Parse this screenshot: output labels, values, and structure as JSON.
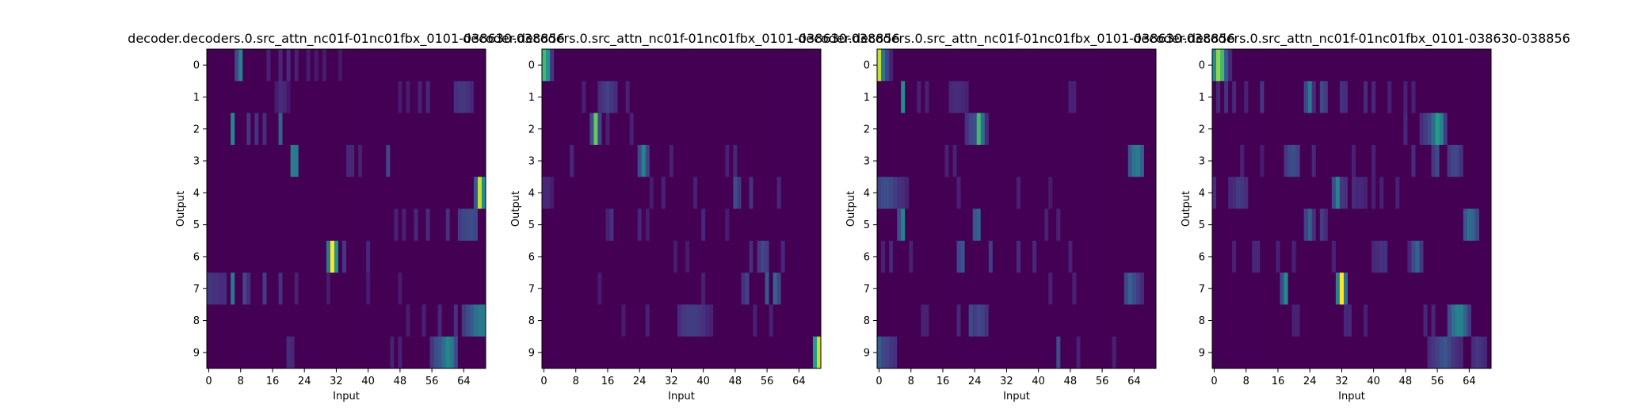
{
  "chart_data": [
    {
      "type": "heatmap",
      "title": "decoder.decoders.0.src_attn_nc01f-01nc01fbx_0101-038630-038856",
      "xlabel": "Input",
      "ylabel": "Output",
      "xlim": [
        0,
        70
      ],
      "ylim": [
        9.5,
        -0.5
      ],
      "x_ticks": [
        0,
        8,
        16,
        24,
        32,
        40,
        48,
        56,
        64
      ],
      "y_ticks": [
        0,
        1,
        2,
        3,
        4,
        5,
        6,
        7,
        8,
        9
      ],
      "grid": false,
      "colormap": "viridis",
      "peaks": [
        {
          "row": 0,
          "x": [
            7,
            8,
            15,
            18,
            20,
            22,
            25,
            27,
            29,
            33
          ],
          "v": [
            0.28,
            0.55,
            0.12,
            0.14,
            0.16,
            0.12,
            0.1,
            0.09,
            0.1,
            0.08
          ]
        },
        {
          "row": 1,
          "x": [
            17,
            18,
            19,
            20,
            48,
            50,
            53,
            55,
            62,
            63,
            64,
            65,
            66
          ],
          "v": [
            0.1,
            0.16,
            0.14,
            0.08,
            0.1,
            0.1,
            0.12,
            0.14,
            0.18,
            0.2,
            0.2,
            0.18,
            0.14
          ]
        },
        {
          "row": 2,
          "x": [
            6,
            10,
            12,
            14,
            18
          ],
          "v": [
            0.58,
            0.2,
            0.18,
            0.16,
            0.38
          ]
        },
        {
          "row": 3,
          "x": [
            21,
            22,
            35,
            36,
            38,
            45
          ],
          "v": [
            0.52,
            0.5,
            0.14,
            0.14,
            0.12,
            0.26
          ]
        },
        {
          "row": 4,
          "x": [
            67,
            68,
            69
          ],
          "v": [
            0.35,
            0.95,
            0.6
          ]
        },
        {
          "row": 5,
          "x": [
            47,
            49,
            52,
            55,
            60,
            63,
            64,
            65,
            66,
            67
          ],
          "v": [
            0.12,
            0.12,
            0.14,
            0.16,
            0.18,
            0.22,
            0.26,
            0.28,
            0.3,
            0.26
          ]
        },
        {
          "row": 6,
          "x": [
            30,
            31,
            32,
            34,
            40
          ],
          "v": [
            0.5,
            1.0,
            0.65,
            0.2,
            0.14
          ]
        },
        {
          "row": 7,
          "x": [
            0,
            1,
            2,
            3,
            4,
            6,
            9,
            10,
            14,
            18,
            22,
            30,
            40,
            48
          ],
          "v": [
            0.2,
            0.18,
            0.18,
            0.16,
            0.16,
            0.5,
            0.26,
            0.16,
            0.22,
            0.18,
            0.12,
            0.1,
            0.1,
            0.1
          ]
        },
        {
          "row": 8,
          "x": [
            50,
            54,
            58,
            62,
            64,
            65,
            66,
            67,
            68,
            69
          ],
          "v": [
            0.1,
            0.12,
            0.14,
            0.18,
            0.22,
            0.3,
            0.36,
            0.45,
            0.5,
            0.5
          ]
        },
        {
          "row": 9,
          "x": [
            20,
            21,
            46,
            48,
            56,
            57,
            58,
            59,
            60,
            61,
            62
          ],
          "v": [
            0.16,
            0.14,
            0.12,
            0.12,
            0.2,
            0.3,
            0.34,
            0.45,
            0.58,
            0.5,
            0.3
          ]
        }
      ]
    },
    {
      "type": "heatmap",
      "title": "decoder.decoders.0.src_attn_nc01f-01nc01fbx_0101-038630-038856",
      "xlabel": "Input",
      "ylabel": "Output",
      "xlim": [
        0,
        70
      ],
      "ylim": [
        9.5,
        -0.5
      ],
      "x_ticks": [
        0,
        8,
        16,
        24,
        32,
        40,
        48,
        56,
        64
      ],
      "y_ticks": [
        0,
        1,
        2,
        3,
        4,
        5,
        6,
        7,
        8,
        9
      ],
      "grid": false,
      "colormap": "viridis",
      "peaks": [
        {
          "row": 0,
          "x": [
            0,
            1,
            2
          ],
          "v": [
            0.8,
            0.65,
            0.2
          ]
        },
        {
          "row": 1,
          "x": [
            10,
            14,
            15,
            16,
            17,
            18,
            21
          ],
          "v": [
            0.12,
            0.16,
            0.2,
            0.24,
            0.2,
            0.16,
            0.12
          ]
        },
        {
          "row": 2,
          "x": [
            12,
            13,
            14,
            16,
            22
          ],
          "v": [
            0.3,
            0.85,
            0.25,
            0.12,
            0.12
          ]
        },
        {
          "row": 3,
          "x": [
            7,
            24,
            25,
            26,
            32,
            46,
            48
          ],
          "v": [
            0.14,
            0.3,
            0.55,
            0.25,
            0.12,
            0.12,
            0.14
          ]
        },
        {
          "row": 4,
          "x": [
            0,
            1,
            2,
            27,
            30,
            38,
            48,
            49,
            52,
            59
          ],
          "v": [
            0.14,
            0.14,
            0.1,
            0.1,
            0.12,
            0.12,
            0.3,
            0.2,
            0.18,
            0.14
          ]
        },
        {
          "row": 5,
          "x": [
            16,
            17,
            24,
            26,
            40,
            46
          ],
          "v": [
            0.12,
            0.18,
            0.14,
            0.1,
            0.14,
            0.1
          ]
        },
        {
          "row": 6,
          "x": [
            33,
            36,
            52,
            54,
            55,
            56,
            60
          ],
          "v": [
            0.1,
            0.1,
            0.16,
            0.2,
            0.26,
            0.22,
            0.14
          ]
        },
        {
          "row": 7,
          "x": [
            14,
            40,
            50,
            51,
            56,
            58,
            59
          ],
          "v": [
            0.1,
            0.12,
            0.18,
            0.24,
            0.34,
            0.4,
            0.24
          ]
        },
        {
          "row": 8,
          "x": [
            20,
            26,
            34,
            35,
            36,
            37,
            38,
            39,
            40,
            41,
            42,
            53,
            57
          ],
          "v": [
            0.1,
            0.12,
            0.16,
            0.2,
            0.22,
            0.22,
            0.22,
            0.2,
            0.18,
            0.14,
            0.12,
            0.12,
            0.12
          ]
        },
        {
          "row": 9,
          "x": [
            68,
            69
          ],
          "v": [
            0.7,
            0.95
          ]
        }
      ]
    },
    {
      "type": "heatmap",
      "title": "decoder.decoders.0.src_attn_nc01f-01nc01fbx_0101-038630-038856",
      "xlabel": "Input",
      "ylabel": "Output",
      "xlim": [
        0,
        70
      ],
      "ylim": [
        9.5,
        -0.5
      ],
      "x_ticks": [
        0,
        8,
        16,
        24,
        32,
        40,
        48,
        56,
        64
      ],
      "y_ticks": [
        0,
        1,
        2,
        3,
        4,
        5,
        6,
        7,
        8,
        9
      ],
      "grid": false,
      "colormap": "viridis",
      "peaks": [
        {
          "row": 0,
          "x": [
            0,
            1,
            2,
            3
          ],
          "v": [
            0.95,
            0.5,
            0.25,
            0.12
          ]
        },
        {
          "row": 1,
          "x": [
            6,
            10,
            12,
            18,
            19,
            20,
            21,
            22,
            48,
            49
          ],
          "v": [
            0.62,
            0.12,
            0.12,
            0.14,
            0.16,
            0.16,
            0.14,
            0.12,
            0.12,
            0.12
          ]
        },
        {
          "row": 2,
          "x": [
            22,
            23,
            24,
            25,
            26,
            27
          ],
          "v": [
            0.18,
            0.26,
            0.3,
            0.8,
            0.45,
            0.16
          ]
        },
        {
          "row": 3,
          "x": [
            17,
            19,
            63,
            64,
            65,
            66
          ],
          "v": [
            0.12,
            0.12,
            0.35,
            0.48,
            0.52,
            0.4
          ]
        },
        {
          "row": 4,
          "x": [
            0,
            1,
            2,
            3,
            4,
            5,
            6,
            7,
            20,
            35,
            43
          ],
          "v": [
            0.24,
            0.3,
            0.3,
            0.26,
            0.22,
            0.18,
            0.16,
            0.12,
            0.12,
            0.12,
            0.1
          ]
        },
        {
          "row": 5,
          "x": [
            5,
            6,
            24,
            25,
            42,
            45
          ],
          "v": [
            0.3,
            0.55,
            0.34,
            0.4,
            0.12,
            0.12
          ]
        },
        {
          "row": 6,
          "x": [
            1,
            3,
            8,
            20,
            21,
            28,
            35,
            39,
            48
          ],
          "v": [
            0.12,
            0.14,
            0.12,
            0.28,
            0.32,
            0.22,
            0.16,
            0.14,
            0.12
          ]
        },
        {
          "row": 7,
          "x": [
            43,
            49,
            62,
            63,
            64,
            65,
            66
          ],
          "v": [
            0.12,
            0.12,
            0.26,
            0.4,
            0.3,
            0.22,
            0.16
          ]
        },
        {
          "row": 8,
          "x": [
            11,
            12,
            20,
            23,
            24,
            25,
            26,
            27
          ],
          "v": [
            0.12,
            0.12,
            0.14,
            0.28,
            0.22,
            0.26,
            0.24,
            0.18
          ]
        },
        {
          "row": 9,
          "x": [
            0,
            1,
            2,
            3,
            4,
            45,
            50,
            59
          ],
          "v": [
            0.36,
            0.26,
            0.24,
            0.2,
            0.18,
            0.3,
            0.12,
            0.12
          ]
        }
      ]
    },
    {
      "type": "heatmap",
      "title": "decoder.decoders.0.src_attn_nc01f-01nc01fbx_0101-038630-038856",
      "xlabel": "Input",
      "ylabel": "Output",
      "xlim": [
        0,
        70
      ],
      "ylim": [
        9.5,
        -0.5
      ],
      "x_ticks": [
        0,
        8,
        16,
        24,
        32,
        40,
        48,
        56,
        64
      ],
      "y_ticks": [
        0,
        1,
        2,
        3,
        4,
        5,
        6,
        7,
        8,
        9
      ],
      "grid": false,
      "colormap": "viridis",
      "peaks": [
        {
          "row": 0,
          "x": [
            0,
            1,
            2,
            3,
            4
          ],
          "v": [
            0.6,
            0.9,
            0.8,
            0.35,
            0.14
          ]
        },
        {
          "row": 1,
          "x": [
            1,
            3,
            5,
            8,
            12,
            23,
            24,
            25,
            27,
            28,
            32,
            33,
            38,
            40,
            44,
            48,
            50
          ],
          "v": [
            0.14,
            0.18,
            0.14,
            0.12,
            0.2,
            0.26,
            0.52,
            0.16,
            0.28,
            0.22,
            0.18,
            0.16,
            0.16,
            0.14,
            0.12,
            0.12,
            0.12
          ]
        },
        {
          "row": 2,
          "x": [
            48,
            52,
            53,
            54,
            55,
            56,
            57,
            58
          ],
          "v": [
            0.14,
            0.16,
            0.22,
            0.3,
            0.45,
            0.7,
            0.55,
            0.22
          ]
        },
        {
          "row": 3,
          "x": [
            7,
            12,
            18,
            19,
            20,
            21,
            25,
            35,
            40,
            50,
            55,
            56,
            59,
            60,
            61,
            62
          ],
          "v": [
            0.12,
            0.1,
            0.2,
            0.28,
            0.3,
            0.24,
            0.14,
            0.12,
            0.12,
            0.16,
            0.2,
            0.28,
            0.22,
            0.26,
            0.26,
            0.18
          ]
        },
        {
          "row": 4,
          "x": [
            0,
            4,
            5,
            6,
            7,
            8,
            30,
            31,
            32,
            33,
            35,
            36,
            37,
            38,
            40,
            42,
            46
          ],
          "v": [
            0.16,
            0.14,
            0.16,
            0.22,
            0.2,
            0.16,
            0.3,
            0.55,
            0.2,
            0.18,
            0.16,
            0.14,
            0.14,
            0.12,
            0.12,
            0.12,
            0.12
          ]
        },
        {
          "row": 5,
          "x": [
            23,
            24,
            25,
            27,
            28,
            63,
            64,
            65,
            66
          ],
          "v": [
            0.24,
            0.4,
            0.18,
            0.22,
            0.16,
            0.34,
            0.45,
            0.4,
            0.26
          ]
        },
        {
          "row": 6,
          "x": [
            5,
            10,
            11,
            16,
            20,
            30,
            40,
            41,
            42,
            43,
            49,
            50,
            51,
            52
          ],
          "v": [
            0.12,
            0.14,
            0.14,
            0.12,
            0.12,
            0.12,
            0.14,
            0.16,
            0.18,
            0.18,
            0.14,
            0.3,
            0.4,
            0.2
          ]
        },
        {
          "row": 7,
          "x": [
            17,
            18,
            31,
            32,
            33
          ],
          "v": [
            0.3,
            0.6,
            0.55,
            1.0,
            0.45
          ]
        },
        {
          "row": 8,
          "x": [
            20,
            21,
            33,
            34,
            38,
            53,
            55,
            59,
            60,
            61,
            62,
            63,
            64
          ],
          "v": [
            0.12,
            0.12,
            0.14,
            0.14,
            0.12,
            0.14,
            0.14,
            0.3,
            0.45,
            0.55,
            0.55,
            0.4,
            0.22
          ]
        },
        {
          "row": 9,
          "x": [
            54,
            55,
            56,
            57,
            58,
            59,
            60,
            61,
            62,
            65,
            66,
            67,
            68
          ],
          "v": [
            0.16,
            0.2,
            0.24,
            0.3,
            0.34,
            0.26,
            0.2,
            0.16,
            0.14,
            0.16,
            0.2,
            0.18,
            0.14
          ]
        }
      ]
    }
  ]
}
